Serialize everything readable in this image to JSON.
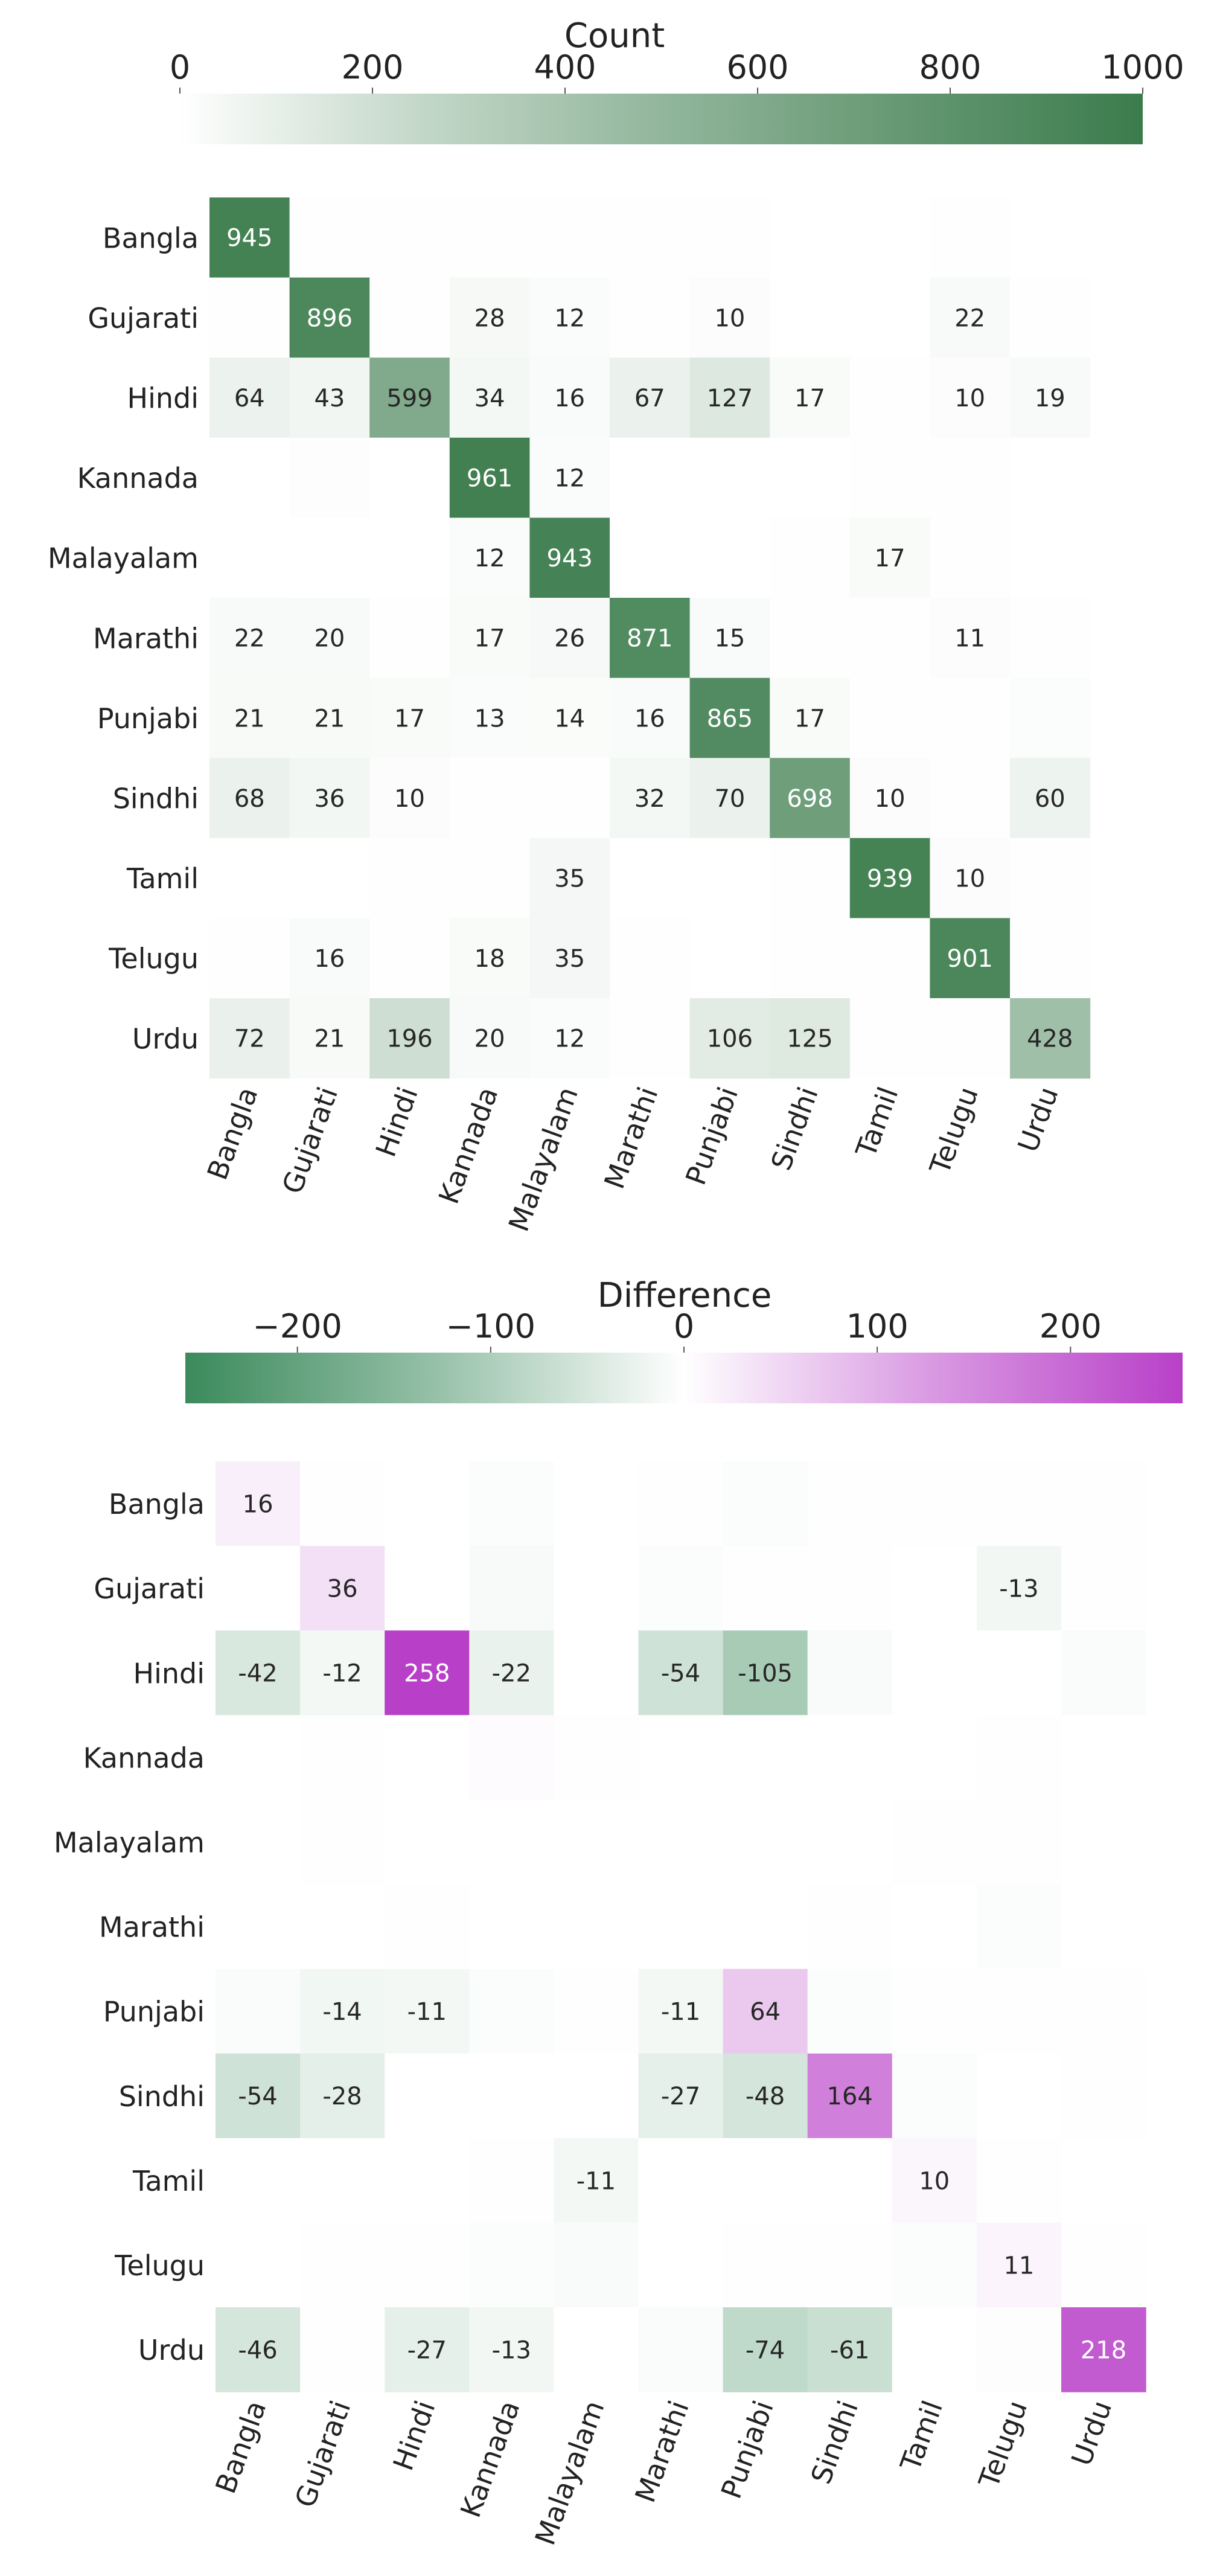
{
  "chart_data": [
    {
      "type": "heatmap",
      "colorbar": {
        "label": "Count",
        "ticks": [
          0,
          200,
          400,
          600,
          800,
          1000
        ],
        "tick_labels": [
          "0",
          "200",
          "400",
          "600",
          "800",
          "1000"
        ],
        "range": [
          0,
          1000
        ],
        "colors": [
          "#ffffff",
          "#3b7c4c"
        ]
      },
      "rows": [
        "Bangla",
        "Gujarati",
        "Hindi",
        "Kannada",
        "Malayalam",
        "Marathi",
        "Punjabi",
        "Sindhi",
        "Tamil",
        "Telugu",
        "Urdu"
      ],
      "cols": [
        "Bangla",
        "Gujarati",
        "Hindi",
        "Kannada",
        "Malayalam",
        "Marathi",
        "Punjabi",
        "Sindhi",
        "Tamil",
        "Telugu",
        "Urdu"
      ],
      "annotation_threshold": 10,
      "values": [
        [
          945,
          3,
          2,
          5,
          4,
          2,
          5,
          1,
          0,
          2,
          1
        ],
        [
          2,
          896,
          2,
          28,
          12,
          2,
          10,
          1,
          1,
          22,
          2
        ],
        [
          64,
          43,
          599,
          34,
          16,
          67,
          127,
          17,
          3,
          10,
          19
        ],
        [
          1,
          8,
          1,
          961,
          12,
          1,
          1,
          1,
          2,
          3,
          1
        ],
        [
          1,
          1,
          1,
          12,
          943,
          1,
          1,
          2,
          17,
          2,
          1
        ],
        [
          22,
          20,
          2,
          17,
          26,
          871,
          15,
          3,
          2,
          11,
          2
        ],
        [
          21,
          21,
          17,
          13,
          14,
          16,
          865,
          17,
          2,
          5,
          9
        ],
        [
          68,
          36,
          10,
          2,
          3,
          32,
          70,
          698,
          10,
          2,
          60
        ],
        [
          1,
          1,
          2,
          4,
          35,
          1,
          1,
          2,
          939,
          10,
          2
        ],
        [
          2,
          16,
          3,
          18,
          35,
          2,
          1,
          5,
          3,
          901,
          2
        ],
        [
          72,
          21,
          196,
          20,
          12,
          5,
          106,
          125,
          2,
          3,
          428
        ]
      ]
    },
    {
      "type": "heatmap",
      "colorbar": {
        "label": "Difference",
        "ticks": [
          -200,
          -100,
          0,
          100,
          200
        ],
        "tick_labels": [
          "−200",
          "−100",
          "0",
          "100",
          "200"
        ],
        "range": [
          -258,
          258
        ],
        "negative_color": "#3b8a5c",
        "positive_color": "#b840c8"
      },
      "rows": [
        "Bangla",
        "Gujarati",
        "Hindi",
        "Kannada",
        "Malayalam",
        "Marathi",
        "Punjabi",
        "Sindhi",
        "Tamil",
        "Telugu",
        "Urdu"
      ],
      "cols": [
        "Bangla",
        "Gujarati",
        "Hindi",
        "Kannada",
        "Malayalam",
        "Marathi",
        "Punjabi",
        "Sindhi",
        "Tamil",
        "Telugu",
        "Urdu"
      ],
      "annotation_threshold": 10,
      "values": [
        [
          16,
          -1,
          0,
          -3,
          0,
          -2,
          -3,
          -2,
          -1,
          -2,
          -1
        ],
        [
          0,
          36,
          0,
          -7,
          0,
          -3,
          -2,
          -1,
          0,
          -13,
          -1
        ],
        [
          -42,
          -12,
          258,
          -22,
          0,
          -54,
          -105,
          -6,
          0,
          0,
          -5
        ],
        [
          0,
          -2,
          0,
          4,
          -1,
          0,
          0,
          0,
          0,
          -2,
          0
        ],
        [
          0,
          -1,
          0,
          0,
          0,
          0,
          0,
          0,
          -2,
          -1,
          0
        ],
        [
          0,
          0,
          -1,
          0,
          0,
          0,
          0,
          -1,
          0,
          -3,
          0
        ],
        [
          -5,
          -14,
          -11,
          -3,
          -1,
          -11,
          64,
          -3,
          -1,
          -1,
          -1
        ],
        [
          -54,
          -28,
          0,
          0,
          0,
          -27,
          -48,
          164,
          -3,
          0,
          -2
        ],
        [
          0,
          0,
          0,
          -1,
          -11,
          0,
          0,
          0,
          10,
          -2,
          0
        ],
        [
          0,
          -2,
          -2,
          -3,
          -6,
          0,
          -1,
          -2,
          -3,
          11,
          -2
        ],
        [
          -46,
          -1,
          -27,
          -13,
          0,
          -4,
          -74,
          -61,
          0,
          2,
          218
        ]
      ]
    }
  ]
}
